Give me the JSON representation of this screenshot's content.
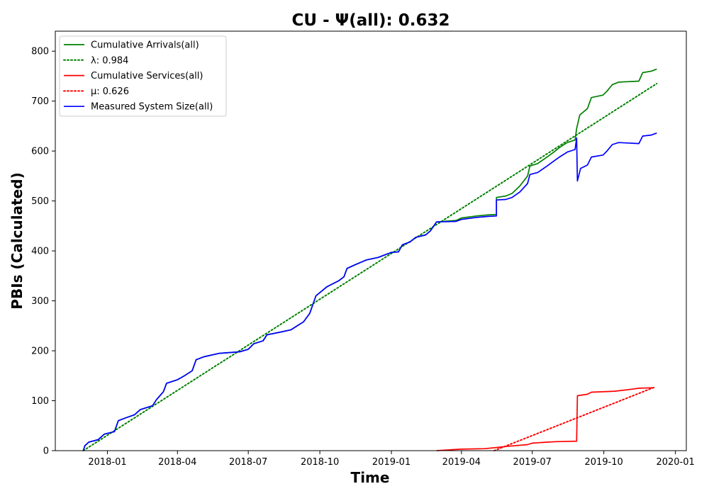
{
  "chart_data": {
    "type": "line",
    "title": "CU -  Ψ(all): 0.632",
    "xlabel": "Time",
    "ylabel": "PBIs (Calculated)",
    "xlim": [
      "2017-10-26",
      "2020-01-15"
    ],
    "ylim": [
      0,
      840
    ],
    "x_ticks": [
      "2018-01",
      "2018-04",
      "2018-07",
      "2018-10",
      "2019-01",
      "2019-04",
      "2019-07",
      "2019-10",
      "2020-01"
    ],
    "y_ticks": [
      0,
      100,
      200,
      300,
      400,
      500,
      600,
      700,
      800
    ],
    "grid": false,
    "legend_position": "top-left",
    "series": [
      {
        "name": "Cumulative Arrivals(all)",
        "color": "#008000",
        "style": "solid",
        "points": [
          [
            "2017-12-01",
            0
          ],
          [
            "2017-12-03",
            10
          ],
          [
            "2017-12-08",
            17
          ],
          [
            "2017-12-20",
            22
          ],
          [
            "2017-12-28",
            33
          ],
          [
            "2018-01-10",
            38
          ],
          [
            "2018-01-15",
            60
          ],
          [
            "2018-01-25",
            66
          ],
          [
            "2018-02-05",
            72
          ],
          [
            "2018-02-12",
            82
          ],
          [
            "2018-02-28",
            90
          ],
          [
            "2018-03-05",
            102
          ],
          [
            "2018-03-14",
            118
          ],
          [
            "2018-03-18",
            135
          ],
          [
            "2018-04-01",
            142
          ],
          [
            "2018-04-10",
            150
          ],
          [
            "2018-04-20",
            160
          ],
          [
            "2018-04-25",
            182
          ],
          [
            "2018-05-05",
            188
          ],
          [
            "2018-05-25",
            195
          ],
          [
            "2018-06-20",
            198
          ],
          [
            "2018-07-01",
            203
          ],
          [
            "2018-07-08",
            214
          ],
          [
            "2018-07-20",
            220
          ],
          [
            "2018-07-25",
            232
          ],
          [
            "2018-08-10",
            237
          ],
          [
            "2018-08-25",
            242
          ],
          [
            "2018-09-10",
            258
          ],
          [
            "2018-09-18",
            275
          ],
          [
            "2018-09-26",
            310
          ],
          [
            "2018-10-10",
            328
          ],
          [
            "2018-10-25",
            340
          ],
          [
            "2018-11-01",
            348
          ],
          [
            "2018-11-05",
            365
          ],
          [
            "2018-11-15",
            372
          ],
          [
            "2018-11-30",
            382
          ],
          [
            "2018-12-15",
            387
          ],
          [
            "2019-01-01",
            397
          ],
          [
            "2019-01-10",
            398
          ],
          [
            "2019-01-15",
            412
          ],
          [
            "2019-01-25",
            418
          ],
          [
            "2019-02-01",
            427
          ],
          [
            "2019-02-14",
            432
          ],
          [
            "2019-02-20",
            440
          ],
          [
            "2019-02-28",
            458
          ],
          [
            "2019-03-25",
            461
          ],
          [
            "2019-04-01",
            466
          ],
          [
            "2019-04-20",
            470
          ],
          [
            "2019-05-04",
            472
          ],
          [
            "2019-05-16",
            473
          ],
          [
            "2019-05-16",
            507
          ],
          [
            "2019-05-28",
            510
          ],
          [
            "2019-06-05",
            515
          ],
          [
            "2019-06-15",
            530
          ],
          [
            "2019-06-25",
            550
          ],
          [
            "2019-06-28",
            570
          ],
          [
            "2019-07-08",
            575
          ],
          [
            "2019-07-20",
            588
          ],
          [
            "2019-07-28",
            597
          ],
          [
            "2019-08-05",
            607
          ],
          [
            "2019-08-15",
            617
          ],
          [
            "2019-08-25",
            622
          ],
          [
            "2019-08-27",
            645
          ],
          [
            "2019-08-31",
            672
          ],
          [
            "2019-09-10",
            685
          ],
          [
            "2019-09-15",
            707
          ],
          [
            "2019-09-30",
            712
          ],
          [
            "2019-10-05",
            720
          ],
          [
            "2019-10-12",
            733
          ],
          [
            "2019-10-20",
            738
          ],
          [
            "2019-11-15",
            740
          ],
          [
            "2019-11-20",
            757
          ],
          [
            "2019-12-01",
            760
          ],
          [
            "2019-12-08",
            764
          ]
        ]
      },
      {
        "name": "λ: 0.984",
        "color": "#008000",
        "style": "dotted",
        "points": [
          [
            "2017-12-01",
            0
          ],
          [
            "2019-12-08",
            735
          ]
        ]
      },
      {
        "name": "Cumulative Services(all)",
        "color": "#ff0000",
        "style": "solid",
        "points": [
          [
            "2019-02-28",
            0
          ],
          [
            "2019-03-20",
            2
          ],
          [
            "2019-04-01",
            3
          ],
          [
            "2019-05-01",
            4
          ],
          [
            "2019-05-20",
            7
          ],
          [
            "2019-06-01",
            9
          ],
          [
            "2019-06-25",
            12
          ],
          [
            "2019-07-01",
            15
          ],
          [
            "2019-07-20",
            17
          ],
          [
            "2019-08-01",
            18
          ],
          [
            "2019-08-27",
            19
          ],
          [
            "2019-08-28",
            110
          ],
          [
            "2019-09-10",
            113
          ],
          [
            "2019-09-15",
            117
          ],
          [
            "2019-10-15",
            119
          ],
          [
            "2019-11-01",
            122
          ],
          [
            "2019-11-15",
            125
          ],
          [
            "2019-12-05",
            126
          ]
        ]
      },
      {
        "name": "μ: 0.626",
        "color": "#ff0000",
        "style": "dotted",
        "points": [
          [
            "2019-05-13",
            0
          ],
          [
            "2019-12-05",
            127
          ]
        ]
      },
      {
        "name": "Measured System Size(all)",
        "color": "#0000ff",
        "style": "solid",
        "points": [
          [
            "2017-12-01",
            0
          ],
          [
            "2017-12-03",
            10
          ],
          [
            "2017-12-08",
            17
          ],
          [
            "2017-12-20",
            22
          ],
          [
            "2017-12-28",
            33
          ],
          [
            "2018-01-10",
            38
          ],
          [
            "2018-01-15",
            60
          ],
          [
            "2018-01-25",
            66
          ],
          [
            "2018-02-05",
            72
          ],
          [
            "2018-02-12",
            82
          ],
          [
            "2018-02-28",
            90
          ],
          [
            "2018-03-05",
            102
          ],
          [
            "2018-03-14",
            118
          ],
          [
            "2018-03-18",
            135
          ],
          [
            "2018-04-01",
            142
          ],
          [
            "2018-04-10",
            150
          ],
          [
            "2018-04-20",
            160
          ],
          [
            "2018-04-25",
            182
          ],
          [
            "2018-05-05",
            188
          ],
          [
            "2018-05-25",
            195
          ],
          [
            "2018-06-20",
            198
          ],
          [
            "2018-07-01",
            203
          ],
          [
            "2018-07-08",
            214
          ],
          [
            "2018-07-20",
            220
          ],
          [
            "2018-07-25",
            232
          ],
          [
            "2018-08-10",
            237
          ],
          [
            "2018-08-25",
            242
          ],
          [
            "2018-09-10",
            258
          ],
          [
            "2018-09-18",
            275
          ],
          [
            "2018-09-26",
            310
          ],
          [
            "2018-10-10",
            328
          ],
          [
            "2018-10-25",
            340
          ],
          [
            "2018-11-01",
            348
          ],
          [
            "2018-11-05",
            365
          ],
          [
            "2018-11-15",
            372
          ],
          [
            "2018-11-30",
            382
          ],
          [
            "2018-12-15",
            387
          ],
          [
            "2019-01-01",
            397
          ],
          [
            "2019-01-10",
            398
          ],
          [
            "2019-01-15",
            412
          ],
          [
            "2019-01-25",
            418
          ],
          [
            "2019-02-01",
            427
          ],
          [
            "2019-02-14",
            432
          ],
          [
            "2019-02-20",
            440
          ],
          [
            "2019-02-28",
            458
          ],
          [
            "2019-03-25",
            459
          ],
          [
            "2019-04-01",
            463
          ],
          [
            "2019-04-20",
            467
          ],
          [
            "2019-05-04",
            469
          ],
          [
            "2019-05-16",
            470
          ],
          [
            "2019-05-16",
            502
          ],
          [
            "2019-05-28",
            503
          ],
          [
            "2019-06-05",
            507
          ],
          [
            "2019-06-15",
            518
          ],
          [
            "2019-06-25",
            535
          ],
          [
            "2019-06-28",
            553
          ],
          [
            "2019-07-08",
            557
          ],
          [
            "2019-07-20",
            570
          ],
          [
            "2019-07-28",
            579
          ],
          [
            "2019-08-05",
            588
          ],
          [
            "2019-08-15",
            598
          ],
          [
            "2019-08-25",
            603
          ],
          [
            "2019-08-27",
            626
          ],
          [
            "2019-08-28",
            540
          ],
          [
            "2019-09-01",
            565
          ],
          [
            "2019-09-10",
            572
          ],
          [
            "2019-09-15",
            588
          ],
          [
            "2019-09-30",
            592
          ],
          [
            "2019-10-05",
            600
          ],
          [
            "2019-10-12",
            613
          ],
          [
            "2019-10-20",
            617
          ],
          [
            "2019-11-15",
            615
          ],
          [
            "2019-11-20",
            630
          ],
          [
            "2019-12-01",
            632
          ],
          [
            "2019-12-08",
            636
          ]
        ]
      }
    ]
  }
}
